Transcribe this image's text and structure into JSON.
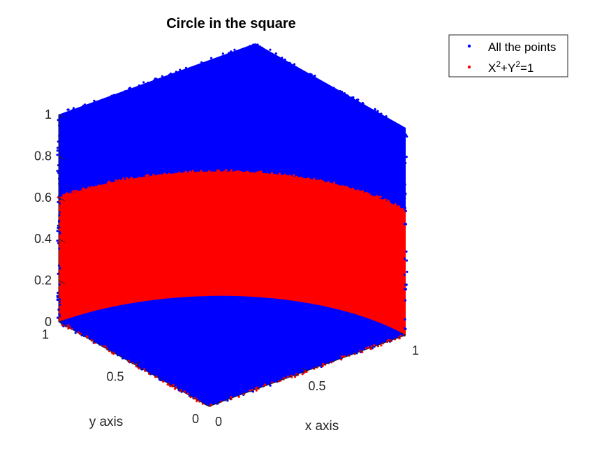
{
  "chart_data": {
    "type": "scatter",
    "title": "Circle in the square",
    "xlabel": "x axis",
    "ylabel": "y axis",
    "zlabel": "",
    "xlim": [
      0,
      1
    ],
    "ylim": [
      0,
      1
    ],
    "zlim": [
      0,
      1
    ],
    "x_ticks": [
      "0",
      "0.5",
      "1"
    ],
    "y_ticks": [
      "0",
      "0.5",
      "1"
    ],
    "z_ticks": [
      "0",
      "0.2",
      "0.4",
      "0.6",
      "0.8",
      "1"
    ],
    "grid": false,
    "legend_position": "top-right",
    "series": [
      {
        "name": "All the points",
        "color": "#0000ff",
        "marker": "dot",
        "region": "points uniformly filling the unit cube [0,1]x[0,1]x[0,1]"
      },
      {
        "name": "X2+Y2=1",
        "color": "#ff0000",
        "marker": "dot",
        "region": "points inside the cube with x^2 + y^2 <= 1 and z <= 0.6"
      }
    ]
  },
  "legend": {
    "items": [
      {
        "label": "All the points",
        "color": "#0000ff"
      },
      {
        "label_base_x": "X",
        "label_sup_x": "2",
        "label_mid": "+Y",
        "label_sup_y": "2",
        "label_end": "=1",
        "color": "#ff0000"
      }
    ]
  }
}
